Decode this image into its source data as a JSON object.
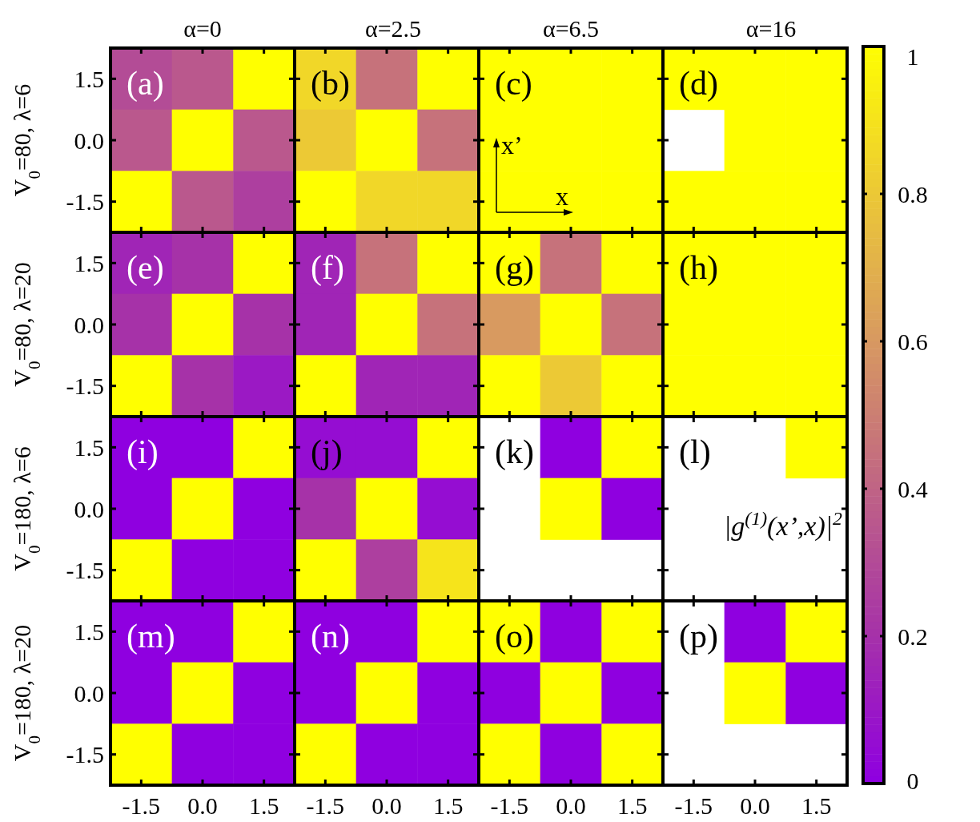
{
  "chart_data": {
    "type": "heatmap",
    "categories": [
      "-1.5",
      "0.0",
      "1.5",
      "-1.5",
      "0.0",
      "1.5",
      "-1.5",
      "0.0",
      "1.5",
      "-1.5",
      "0.0",
      "1.5"
    ],
    "y_categories": [
      "1.5",
      "0.0",
      "-1.5",
      "1.5",
      "0.0",
      "-1.5",
      "1.5",
      "0.0",
      "-1.5",
      "1.5",
      "0.0",
      "-1.5"
    ],
    "cells": [
      [
        0.3,
        0.35,
        1,
        0.85,
        0.45,
        1,
        1,
        1,
        1,
        1,
        1,
        1
      ],
      [
        0.35,
        1,
        0.35,
        0.8,
        1,
        0.45,
        1,
        1,
        1,
        null,
        1,
        1
      ],
      [
        1,
        0.35,
        0.25,
        1,
        0.85,
        0.85,
        1,
        1,
        1,
        1,
        1,
        1
      ],
      [
        0.15,
        0.2,
        1,
        0.15,
        0.45,
        1,
        1,
        0.45,
        1,
        1,
        1,
        1
      ],
      [
        0.2,
        1,
        0.2,
        0.15,
        1,
        0.45,
        0.6,
        1,
        0.45,
        1,
        1,
        1
      ],
      [
        1,
        0.2,
        0.1,
        1,
        0.15,
        0.15,
        1,
        0.8,
        1,
        1,
        1,
        1
      ],
      [
        0,
        0,
        1,
        0.05,
        0.05,
        1,
        null,
        0,
        1,
        null,
        null,
        1
      ],
      [
        0,
        1,
        0,
        0.2,
        1,
        0.05,
        null,
        1,
        0,
        null,
        null,
        null
      ],
      [
        1,
        0,
        0,
        1,
        0.25,
        0.9,
        null,
        null,
        null,
        null,
        null,
        null
      ],
      [
        0,
        0,
        1,
        0,
        0,
        1,
        1,
        0,
        1,
        null,
        0,
        1
      ],
      [
        0,
        1,
        0,
        0,
        1,
        0,
        0,
        1,
        0,
        null,
        1,
        0
      ],
      [
        1,
        0,
        0,
        1,
        0,
        0,
        1,
        0,
        1,
        null,
        null,
        null
      ]
    ],
    "clim": [
      0,
      1
    ],
    "cticks": [
      0,
      0.2,
      0.4,
      0.6,
      0.8,
      1
    ],
    "annotations": [
      "α=0",
      "α=2.5",
      "α=6.5",
      "α=16",
      "V$_{0}$=80, λ=6",
      "V$_{0}$=80, λ=20",
      "V$_{0}$=180, λ=6",
      "V$_{0}$=180, λ=20",
      "(a)",
      "(b)",
      "(c)",
      "(d)",
      "(e)",
      "(f)",
      "(g)",
      "(h)",
      "(i)",
      "(j)",
      "(k)",
      "(l)",
      "(m)",
      "(n)",
      "(o)",
      "(p)",
      "x’",
      "x",
      "|g$^{(1)}$(x’,x)|$^{2}$"
    ]
  }
}
